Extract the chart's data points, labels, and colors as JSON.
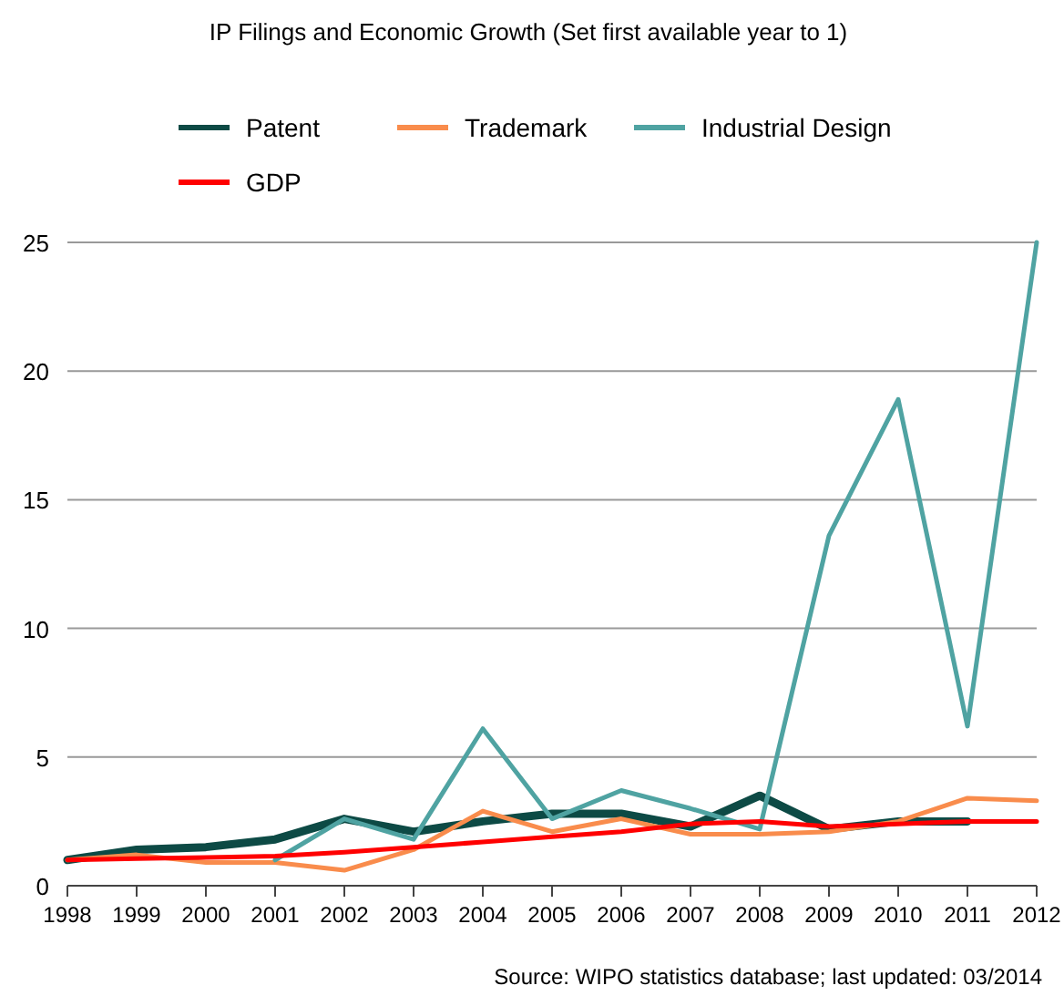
{
  "chart_data": {
    "type": "line",
    "title": "IP Filings and Economic Growth (Set first available year to 1)",
    "categories": [
      "1998",
      "1999",
      "2000",
      "2001",
      "2002",
      "2003",
      "2004",
      "2005",
      "2006",
      "2007",
      "2008",
      "2009",
      "2010",
      "2011",
      "2012"
    ],
    "series": [
      {
        "name": "Patent",
        "color": "#0d4a45",
        "values": [
          1,
          1.4,
          1.5,
          1.8,
          2.6,
          2.1,
          2.5,
          2.8,
          2.8,
          2.3,
          3.5,
          2.2,
          2.5,
          2.5,
          null
        ]
      },
      {
        "name": "Trademark",
        "color": "#f98c4c",
        "values": [
          1,
          1.2,
          0.9,
          0.9,
          0.6,
          1.4,
          2.9,
          2.1,
          2.6,
          2.0,
          2.0,
          2.1,
          2.5,
          3.4,
          3.3
        ]
      },
      {
        "name": "Industrial Design",
        "color": "#4fa3a2",
        "values": [
          null,
          null,
          null,
          1,
          2.6,
          1.8,
          6.1,
          2.6,
          3.7,
          3.0,
          2.2,
          13.6,
          18.9,
          6.2,
          25
        ]
      },
      {
        "name": "GDP",
        "color": "#ff0000",
        "values": [
          1,
          1.05,
          1.1,
          1.15,
          1.3,
          1.5,
          1.7,
          1.9,
          2.1,
          2.4,
          2.5,
          2.3,
          2.4,
          2.5,
          2.5
        ]
      }
    ],
    "ylim": [
      0,
      25
    ],
    "yticks": [
      0,
      5,
      10,
      15,
      20,
      25
    ],
    "grid": "y",
    "legend": "top",
    "marker": "none",
    "line_style": "solid",
    "annotations": [
      "Source: WIPO statistics database; last updated: 03/2014"
    ]
  }
}
